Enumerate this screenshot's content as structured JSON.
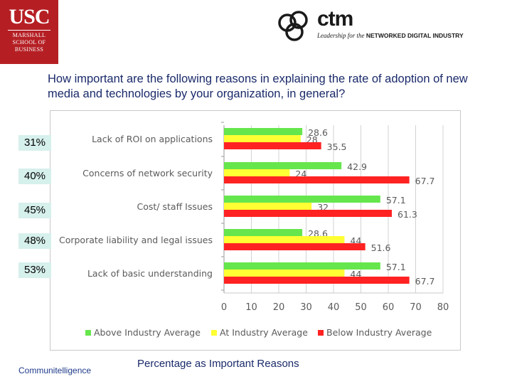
{
  "header": {
    "usc_logo": {
      "line1": "USC",
      "line2": "MARSHALL",
      "line3": "SCHOOL OF",
      "line4": "BUSINESS"
    },
    "ctm_logo": {
      "word": "ctm",
      "tagline_italic": "Leadership for the",
      "tagline_bold": "NETWORKED DIGITAL INDUSTRY"
    }
  },
  "question": "How important are the following reasons in explaining the rate of adoption of new media and technologies by your organization, in general?",
  "percent_boxes": [
    "31%",
    "40%",
    "45%",
    "48%",
    "53%"
  ],
  "footer": {
    "left": "Communitelligence",
    "center": "Percentage as Important Reasons"
  },
  "chart_data": {
    "type": "bar",
    "orientation": "horizontal",
    "categories": [
      "Lack of ROI on applications",
      "Concerns of network security",
      "Cost/ staff Issues",
      "Corporate liability and legal issues",
      "Lack of basic understanding"
    ],
    "series": [
      {
        "name": "Above Industry Average",
        "color": "#66e64d",
        "values": [
          28.6,
          42.9,
          57.1,
          28.6,
          57.1
        ]
      },
      {
        "name": "At Industry Average",
        "color": "#ffff33",
        "values": [
          28,
          24,
          32,
          44,
          44
        ]
      },
      {
        "name": "Below Industry Average",
        "color": "#ff2222",
        "values": [
          35.5,
          67.7,
          61.3,
          51.6,
          67.7
        ]
      }
    ],
    "value_labels": [
      [
        "28.6",
        "28",
        "35.5"
      ],
      [
        "42.9",
        "24",
        "67.7"
      ],
      [
        "57.1",
        "32",
        "61.3"
      ],
      [
        "28.6",
        "44",
        "51.6"
      ],
      [
        "57.1",
        "44",
        "67.7"
      ]
    ],
    "xlim": [
      0,
      80
    ],
    "xticks": [
      0,
      10,
      20,
      30,
      40,
      50,
      60,
      70,
      80
    ],
    "grid": true,
    "legend": "bottom"
  }
}
